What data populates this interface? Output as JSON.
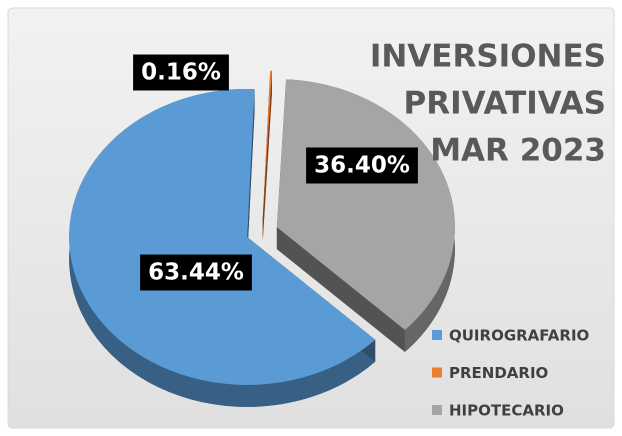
{
  "chart_data": {
    "type": "pie",
    "title": [
      "INVERSIONES",
      "PRIVATIVAS",
      "MAR 2023"
    ],
    "categories": [
      "QUIROGRAFARIO",
      "PRENDARIO",
      "HIPOTECARIO"
    ],
    "values": [
      63.44,
      0.16,
      36.4
    ],
    "value_labels": [
      "63.44%",
      "0.16%",
      "36.40%"
    ],
    "colors": [
      "#5b9bd5",
      "#ed7d31",
      "#a5a5a5"
    ],
    "legend": "bottom-right"
  }
}
